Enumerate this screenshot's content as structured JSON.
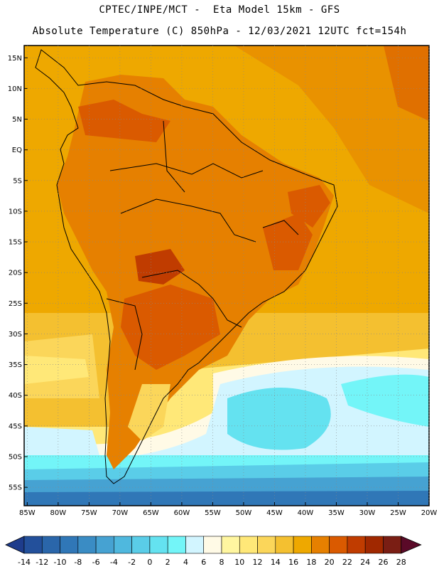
{
  "header": {
    "line1": "CPTEC/INPE/MCT -  Eta Model 15km - GFS",
    "line2": "Absolute Temperature (C) 850hPa - 12/03/2021 12UTC fct=154h"
  },
  "map": {
    "lat_labels": [
      "15N",
      "10N",
      "5N",
      "EQ",
      "5S",
      "10S",
      "15S",
      "20S",
      "25S",
      "30S",
      "35S",
      "40S",
      "45S",
      "50S",
      "55S"
    ],
    "lon_labels": [
      "85W",
      "80W",
      "75W",
      "70W",
      "65W",
      "60W",
      "55W",
      "50W",
      "45W",
      "40W",
      "35W",
      "30W",
      "25W",
      "20W"
    ],
    "lat_values": [
      15,
      10,
      5,
      0,
      -5,
      -10,
      -15,
      -20,
      -25,
      -30,
      -35,
      -40,
      -45,
      -50,
      -55
    ],
    "lon_values": [
      -85,
      -80,
      -75,
      -70,
      -65,
      -60,
      -55,
      -50,
      -45,
      -40,
      -35,
      -30,
      -25,
      -20
    ],
    "extent": {
      "lon_min": -85.5,
      "lon_max": -20,
      "lat_min": -58,
      "lat_max": 17
    }
  },
  "colorbar": {
    "labels": [
      "-14",
      "-12",
      "-10",
      "-8",
      "-6",
      "-4",
      "-2",
      "0",
      "2",
      "4",
      "6",
      "8",
      "10",
      "12",
      "14",
      "16",
      "18",
      "20",
      "22",
      "24",
      "26",
      "28"
    ],
    "colors": [
      "#1e3c8c",
      "#23509b",
      "#2a66aa",
      "#3077b7",
      "#3a8cc4",
      "#46a2d2",
      "#4fb8de",
      "#5acde8",
      "#64e2f0",
      "#73f5f8",
      "#d2f5ff",
      "#fffae6",
      "#fff6a0",
      "#ffe878",
      "#fbd65a",
      "#f4c030",
      "#eea800",
      "#e68000",
      "#da5a00",
      "#c03c00",
      "#a02800",
      "#7a1e14",
      "#5a0a28"
    ]
  }
}
